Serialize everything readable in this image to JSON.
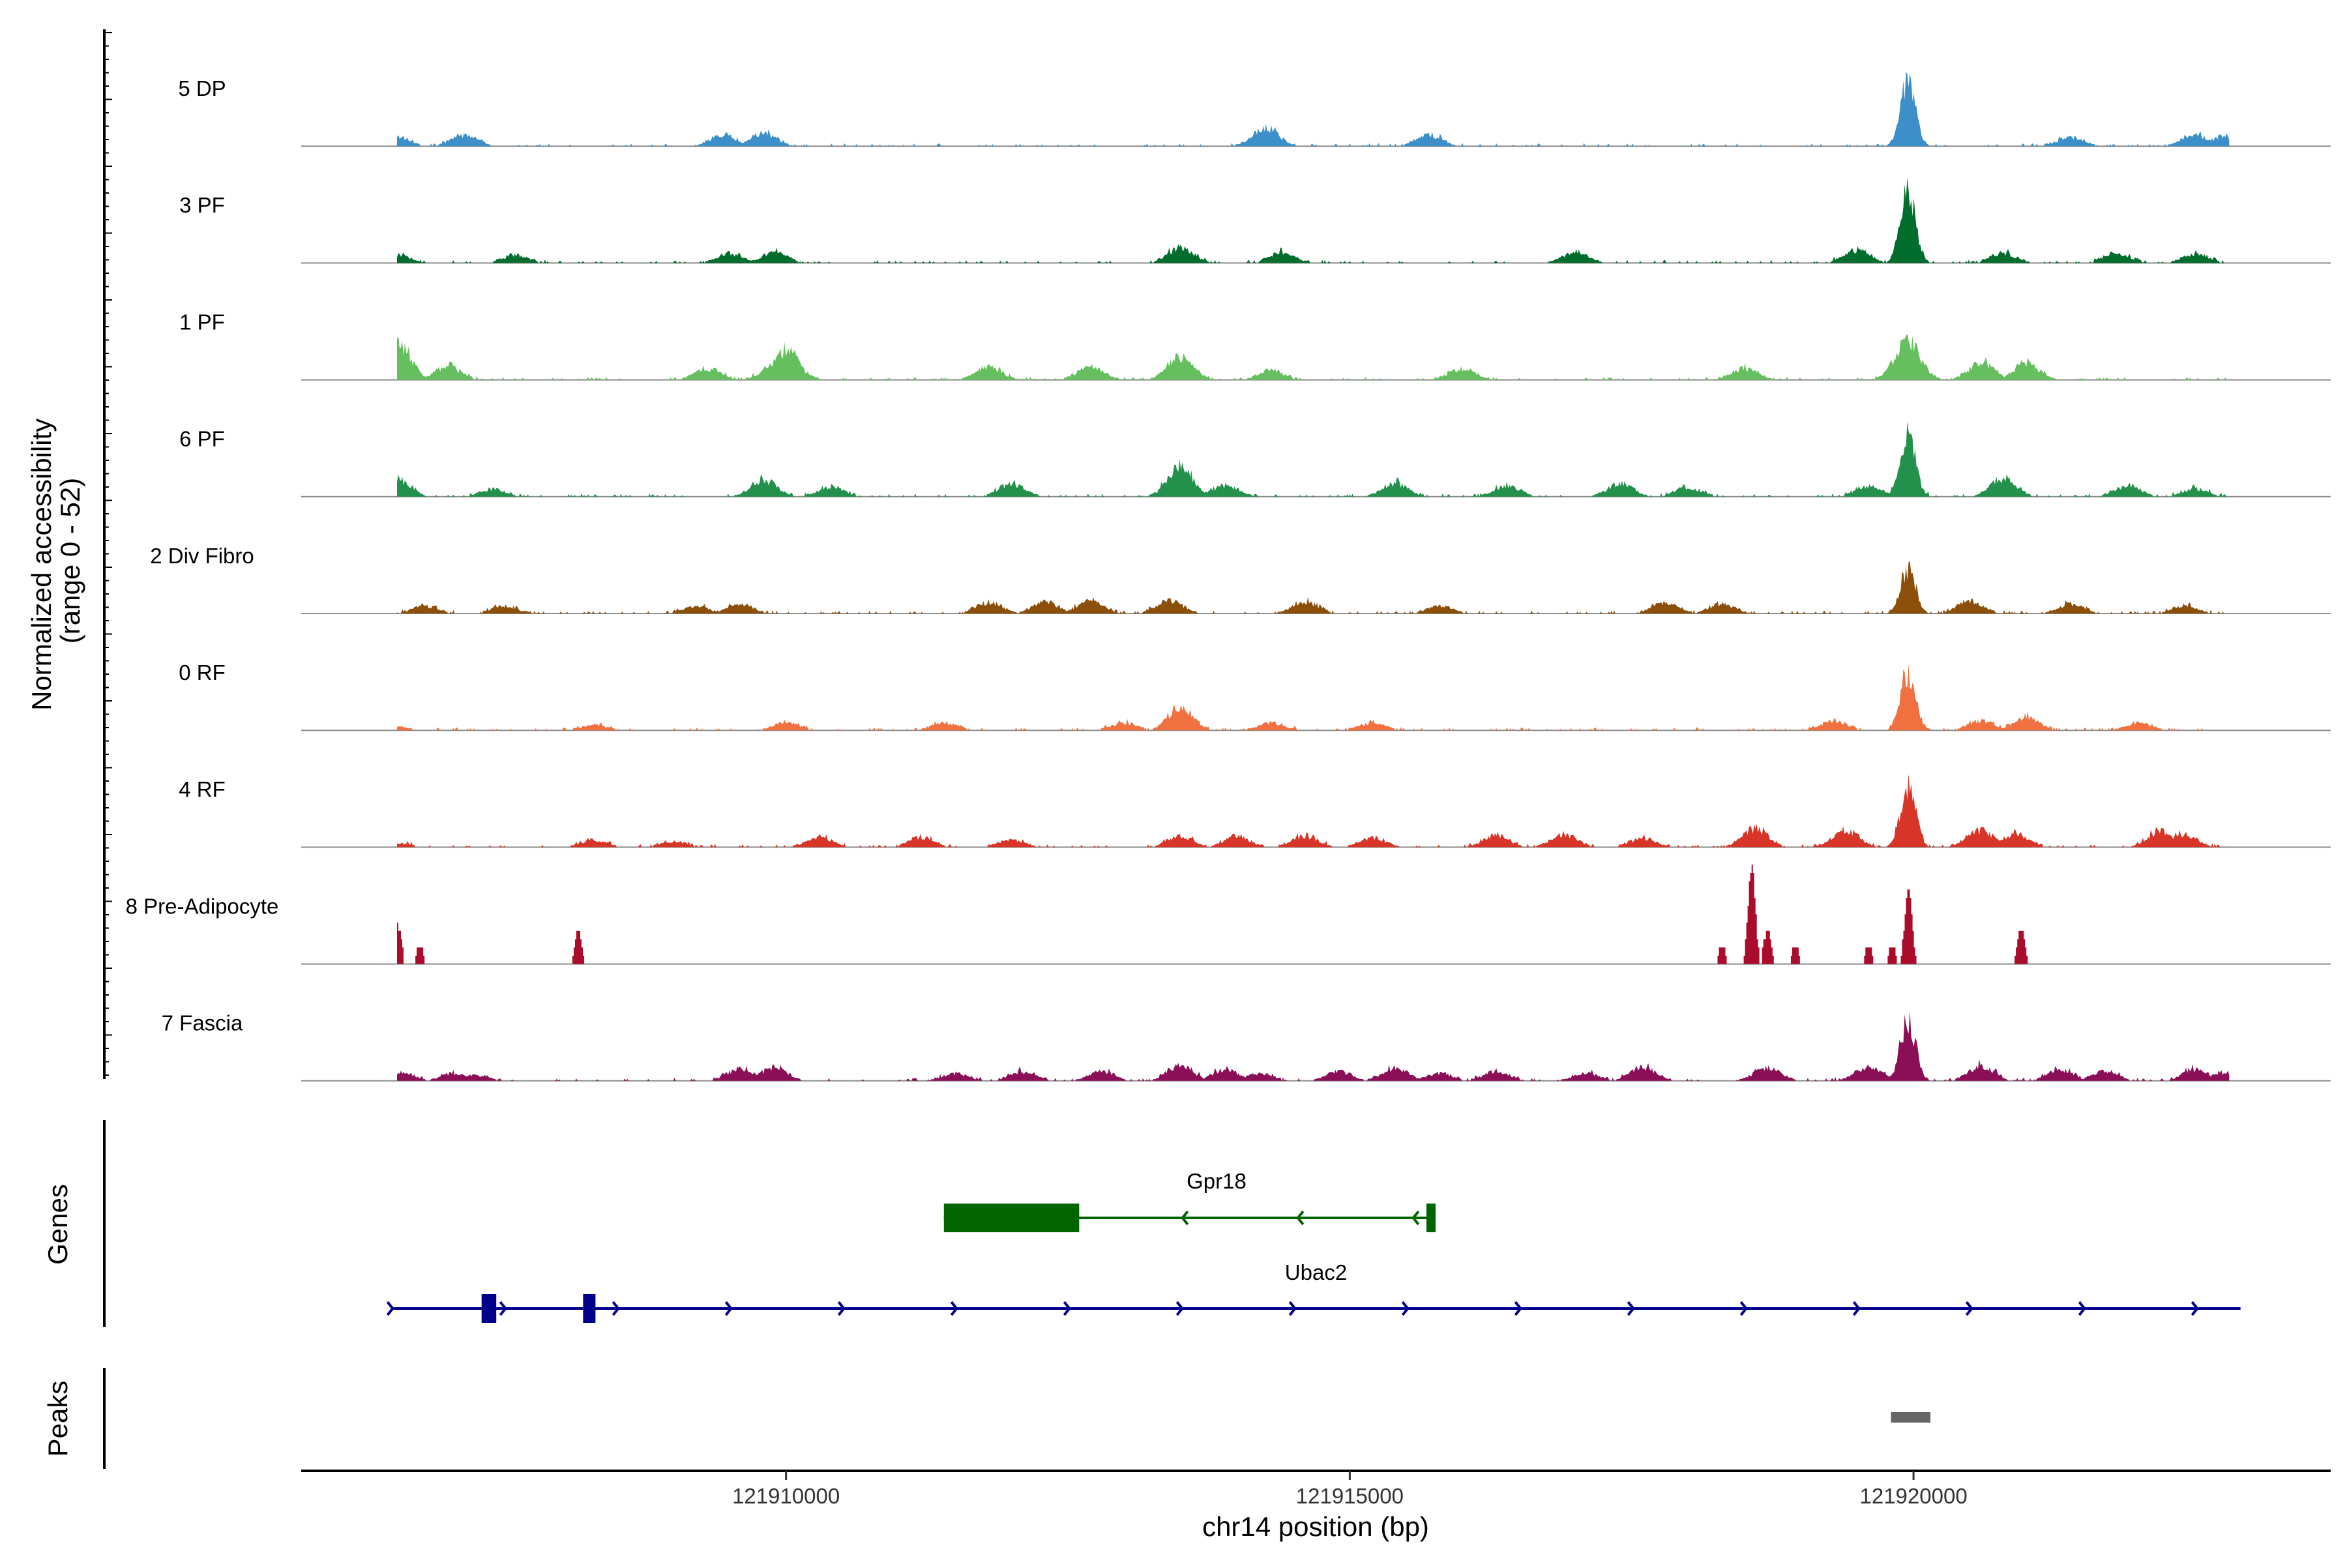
{
  "chart_data": {
    "type": "area",
    "title": "",
    "ylabel_line1": "Normalized accessibility",
    "ylabel_line2": "(range 0 - 52)",
    "y_range": [
      0,
      52
    ],
    "xlabel": "chr14 position (bp)",
    "x_range": [
      121905700,
      121923700
    ],
    "x_ticks": [
      121910000,
      121915000,
      121920000
    ],
    "x_tick_labels": [
      "121910000",
      "121915000",
      "121920000"
    ],
    "tracks": [
      {
        "name": "5 DP",
        "color": "#3d8fc9",
        "peaks": [
          [
            121906550,
            5
          ],
          [
            121907150,
            6
          ],
          [
            121909450,
            6
          ],
          [
            121909800,
            7
          ],
          [
            121914250,
            10
          ],
          [
            121915700,
            6
          ],
          [
            121919950,
            33
          ],
          [
            121921400,
            5
          ],
          [
            121922500,
            6
          ],
          [
            121922750,
            5
          ]
        ]
      },
      {
        "name": "3 PF",
        "color": "#006d2c",
        "peaks": [
          [
            121906550,
            4
          ],
          [
            121907600,
            4
          ],
          [
            121909500,
            5
          ],
          [
            121909900,
            6
          ],
          [
            121913500,
            8
          ],
          [
            121914400,
            6
          ],
          [
            121917000,
            6
          ],
          [
            121919500,
            7
          ],
          [
            121919950,
            38
          ],
          [
            121920800,
            5
          ],
          [
            121921800,
            5
          ],
          [
            121922500,
            5
          ]
        ]
      },
      {
        "name": "1 PF",
        "color": "#66bf5f",
        "peaks": [
          [
            121906550,
            20
          ],
          [
            121907000,
            7
          ],
          [
            121909300,
            6
          ],
          [
            121909900,
            8
          ],
          [
            121910000,
            16
          ],
          [
            121911800,
            7
          ],
          [
            121912700,
            7
          ],
          [
            121913500,
            12
          ],
          [
            121914300,
            5
          ],
          [
            121916000,
            6
          ],
          [
            121918500,
            6
          ],
          [
            121919950,
            20
          ],
          [
            121920600,
            9
          ],
          [
            121921000,
            9
          ]
        ]
      },
      {
        "name": "6 PF",
        "color": "#23914b",
        "peaks": [
          [
            121906550,
            9
          ],
          [
            121907400,
            4
          ],
          [
            121909800,
            9
          ],
          [
            121910400,
            5
          ],
          [
            121912000,
            7
          ],
          [
            121913500,
            16
          ],
          [
            121913900,
            6
          ],
          [
            121915400,
            7
          ],
          [
            121916400,
            6
          ],
          [
            121917400,
            7
          ],
          [
            121918000,
            5
          ],
          [
            121919600,
            6
          ],
          [
            121919950,
            32
          ],
          [
            121920800,
            10
          ],
          [
            121921900,
            6
          ],
          [
            121922500,
            4
          ]
        ]
      },
      {
        "name": "2 Div Fibro",
        "color": "#8b4f0a",
        "peaks": [
          [
            121906800,
            4
          ],
          [
            121907500,
            4
          ],
          [
            121909200,
            4
          ],
          [
            121909600,
            5
          ],
          [
            121911800,
            6
          ],
          [
            121912300,
            6
          ],
          [
            121912700,
            7
          ],
          [
            121913400,
            7
          ],
          [
            121914600,
            6
          ],
          [
            121915800,
            4
          ],
          [
            121917800,
            6
          ],
          [
            121918300,
            5
          ],
          [
            121919950,
            24
          ],
          [
            121920500,
            7
          ],
          [
            121921400,
            5
          ],
          [
            121922400,
            4
          ]
        ]
      },
      {
        "name": "0 RF",
        "color": "#f07040",
        "peaks": [
          [
            121906550,
            2
          ],
          [
            121908300,
            3
          ],
          [
            121910000,
            4
          ],
          [
            121911400,
            4
          ],
          [
            121913000,
            4
          ],
          [
            121913500,
            12
          ],
          [
            121914300,
            4
          ],
          [
            121915200,
            4
          ],
          [
            121919300,
            5
          ],
          [
            121919950,
            30
          ],
          [
            121920600,
            5
          ],
          [
            121921000,
            7
          ],
          [
            121922000,
            4
          ]
        ]
      },
      {
        "name": "4 RF",
        "color": "#d73527",
        "peaks": [
          [
            121906550,
            2
          ],
          [
            121908300,
            4
          ],
          [
            121909000,
            3
          ],
          [
            121910300,
            5
          ],
          [
            121911200,
            5
          ],
          [
            121912000,
            4
          ],
          [
            121913500,
            6
          ],
          [
            121914000,
            6
          ],
          [
            121914600,
            6
          ],
          [
            121915200,
            5
          ],
          [
            121916300,
            6
          ],
          [
            121916900,
            7
          ],
          [
            121917600,
            5
          ],
          [
            121918600,
            10
          ],
          [
            121919400,
            9
          ],
          [
            121919950,
            32
          ],
          [
            121920600,
            9
          ],
          [
            121920900,
            7
          ],
          [
            121922200,
            9
          ],
          [
            121922400,
            7
          ]
        ]
      },
      {
        "name": "8 Pre-Adipocyte",
        "color": "#aa0c2c",
        "peaks": [
          [
            121906550,
            19
          ],
          [
            121906750,
            9
          ],
          [
            121908150,
            16
          ],
          [
            121918300,
            9
          ],
          [
            121918560,
            47
          ],
          [
            121918700,
            17
          ],
          [
            121918950,
            9
          ],
          [
            121919600,
            9
          ],
          [
            121919800,
            9
          ],
          [
            121919950,
            38
          ],
          [
            121920950,
            18
          ]
        ]
      },
      {
        "name": "7 Fascia",
        "color": "#8a0f57",
        "peaks": [
          [
            121906600,
            4
          ],
          [
            121907050,
            4
          ],
          [
            121907250,
            3
          ],
          [
            121909600,
            7
          ],
          [
            121909900,
            7
          ],
          [
            121911500,
            4
          ],
          [
            121912100,
            5
          ],
          [
            121912800,
            5
          ],
          [
            121913500,
            8
          ],
          [
            121913900,
            6
          ],
          [
            121914200,
            4
          ],
          [
            121914900,
            5
          ],
          [
            121915400,
            7
          ],
          [
            121915800,
            4
          ],
          [
            121916300,
            5
          ],
          [
            121917100,
            4
          ],
          [
            121917600,
            7
          ],
          [
            121918700,
            7
          ],
          [
            121919600,
            8
          ],
          [
            121919950,
            32
          ],
          [
            121920600,
            8
          ],
          [
            121921300,
            6
          ],
          [
            121921700,
            5
          ],
          [
            121922500,
            6
          ],
          [
            121922750,
            4
          ]
        ]
      }
    ],
    "genes_panel_label": "Genes",
    "peaks_panel_label": "Peaks",
    "genes": [
      {
        "name": "Gpr18",
        "strand": "-",
        "color": "#006400",
        "start": 121911400,
        "end": 121915750,
        "exons": [
          [
            121911400,
            121912600
          ],
          [
            121915680,
            121915760
          ]
        ]
      },
      {
        "name": "Ubac2",
        "strand": "+",
        "color": "#00008b",
        "start": 121906500,
        "end": 121922900,
        "exons": [
          [
            121907300,
            121907430
          ],
          [
            121908200,
            121908310
          ]
        ]
      }
    ],
    "peak_regions": [
      {
        "start": 121919800,
        "end": 121920150,
        "color": "#666666"
      }
    ]
  }
}
